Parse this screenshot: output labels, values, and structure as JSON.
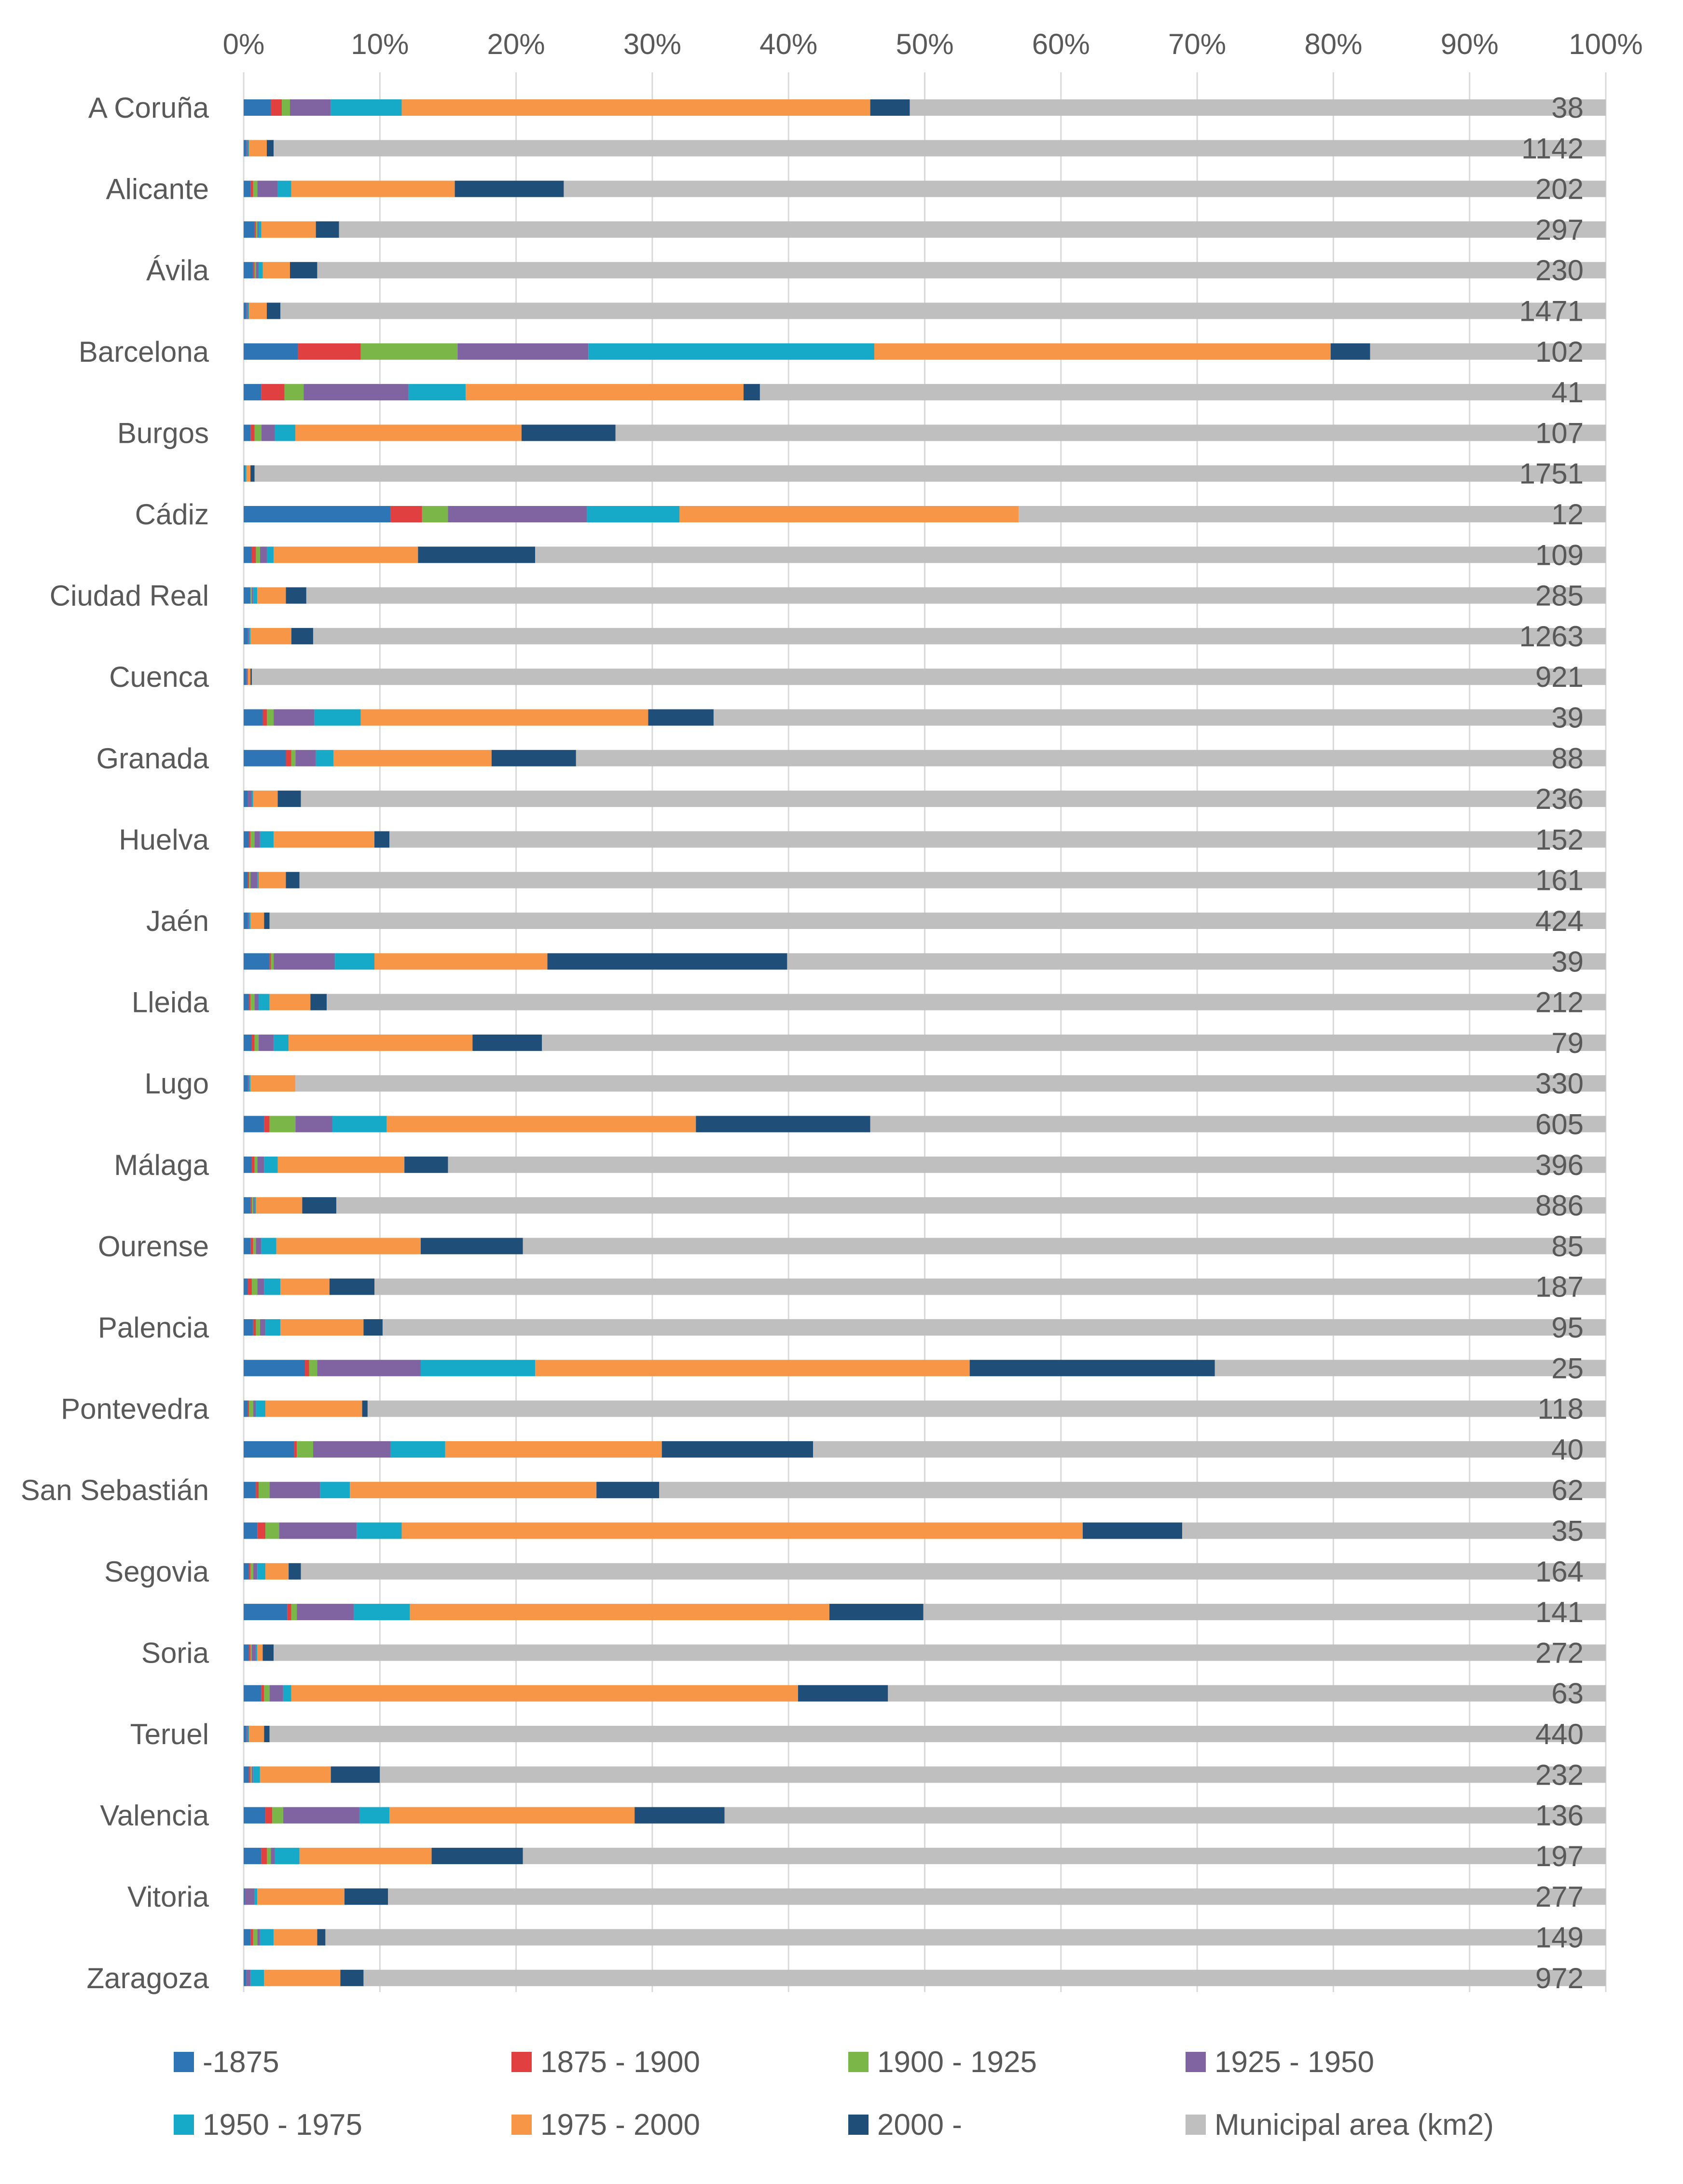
{
  "chart_data": {
    "type": "stacked-bar-100-horizontal",
    "x_ticks": [
      "0%",
      "10%",
      "20%",
      "30%",
      "40%",
      "50%",
      "60%",
      "70%",
      "80%",
      "90%",
      "100%"
    ],
    "xlim": [
      0,
      100
    ],
    "grid": true,
    "legend_position": "bottom",
    "series": [
      {
        "name": "-1875",
        "color": "#2E75B6"
      },
      {
        "name": "1875 - 1900",
        "color": "#E0403F"
      },
      {
        "name": "1900 - 1925",
        "color": "#7AB648"
      },
      {
        "name": "1925 - 1950",
        "color": "#8064A2"
      },
      {
        "name": "1950 - 1975",
        "color": "#17A9C8"
      },
      {
        "name": "1975 - 2000",
        "color": "#F79646"
      },
      {
        "name": "2000 -",
        "color": "#1F4E79"
      },
      {
        "name": "Municipal area (km2)",
        "color": "#BFBFBF"
      }
    ],
    "rows": [
      {
        "label": "A Coruña",
        "area": "38",
        "values": [
          2,
          0.8,
          0.6,
          3,
          5.2,
          34.4,
          2.9
        ]
      },
      {
        "label": "",
        "area": "1142",
        "values": [
          0.2,
          0,
          0,
          0.1,
          0.1,
          1.3,
          0.5
        ]
      },
      {
        "label": "Alicante",
        "area": "202",
        "values": [
          0.5,
          0.2,
          0.3,
          1.5,
          1,
          12,
          8
        ]
      },
      {
        "label": "",
        "area": "297",
        "values": [
          0.8,
          0.1,
          0.1,
          0.1,
          0.2,
          4,
          1.7
        ]
      },
      {
        "label": "Ávila",
        "area": "230",
        "values": [
          0.7,
          0.1,
          0.1,
          0.2,
          0.3,
          2,
          2
        ]
      },
      {
        "label": "",
        "area": "1471",
        "values": [
          0.2,
          0,
          0,
          0.1,
          0.1,
          1.3,
          1
        ]
      },
      {
        "label": "Barcelona",
        "area": "102",
        "values": [
          4,
          4.6,
          7.1,
          9.6,
          21,
          33.5,
          2.9
        ]
      },
      {
        "label": "",
        "area": "41",
        "values": [
          1.3,
          1.7,
          1.4,
          7.7,
          4.2,
          20.4,
          1.2
        ]
      },
      {
        "label": "Burgos",
        "area": "107",
        "values": [
          0.5,
          0.3,
          0.5,
          1,
          1.5,
          16.6,
          6.9
        ]
      },
      {
        "label": "",
        "area": "1751",
        "values": [
          0.1,
          0,
          0,
          0,
          0.1,
          0.3,
          0.3
        ]
      },
      {
        "label": "Cádiz",
        "area": "12",
        "values": [
          10.8,
          2.3,
          1.9,
          10.2,
          6.8,
          24.9,
          0
        ]
      },
      {
        "label": "",
        "area": "109",
        "values": [
          0.6,
          0.3,
          0.3,
          0.5,
          0.5,
          10.6,
          8.6
        ]
      },
      {
        "label": "Ciudad Real",
        "area": "285",
        "values": [
          0.5,
          0,
          0.1,
          0.1,
          0.3,
          2.1,
          1.5
        ]
      },
      {
        "label": "",
        "area": "1263",
        "values": [
          0.3,
          0,
          0,
          0.1,
          0.1,
          3,
          1.6
        ]
      },
      {
        "label": "Cuenca",
        "area": "921",
        "values": [
          0.2,
          0,
          0,
          0.1,
          0,
          0.2,
          0.1
        ]
      },
      {
        "label": "",
        "area": "39",
        "values": [
          1.4,
          0.3,
          0.5,
          3,
          3.4,
          21.1,
          4.8
        ]
      },
      {
        "label": "Granada",
        "area": "88",
        "values": [
          3.1,
          0.4,
          0.3,
          1.5,
          1.3,
          11.6,
          6.2
        ]
      },
      {
        "label": "",
        "area": "236",
        "values": [
          0.3,
          0,
          0,
          0.3,
          0.1,
          1.8,
          1.7
        ]
      },
      {
        "label": "Huelva",
        "area": "152",
        "values": [
          0.4,
          0.1,
          0.3,
          0.4,
          1,
          7.4,
          1.1
        ]
      },
      {
        "label": "",
        "area": "161",
        "values": [
          0.3,
          0.1,
          0.1,
          0.5,
          0.1,
          2,
          1
        ]
      },
      {
        "label": "Jaén",
        "area": "424",
        "values": [
          0.3,
          0,
          0,
          0.1,
          0.1,
          1,
          0.4
        ]
      },
      {
        "label": "",
        "area": "39",
        "values": [
          1.9,
          0.1,
          0.2,
          4.5,
          2.9,
          12.7,
          17.6
        ]
      },
      {
        "label": "Lleida",
        "area": "212",
        "values": [
          0.4,
          0.1,
          0.3,
          0.3,
          0.8,
          3,
          1.2
        ]
      },
      {
        "label": "",
        "area": "79",
        "values": [
          0.6,
          0.2,
          0.3,
          1.1,
          1.1,
          13.5,
          5.1
        ]
      },
      {
        "label": "Lugo",
        "area": "330",
        "values": [
          0.3,
          0,
          0,
          0.1,
          0.1,
          3.3,
          0
        ]
      },
      {
        "label": "",
        "area": "605",
        "values": [
          1.5,
          0.4,
          1.9,
          2.7,
          4,
          22.7,
          12.8
        ]
      },
      {
        "label": "Málaga",
        "area": "396",
        "values": [
          0.6,
          0.2,
          0.2,
          0.5,
          1,
          9.3,
          3.2
        ]
      },
      {
        "label": "",
        "area": "886",
        "values": [
          0.5,
          0.1,
          0.1,
          0.1,
          0.1,
          3.4,
          2.5
        ]
      },
      {
        "label": "Ourense",
        "area": "85",
        "values": [
          0.5,
          0.2,
          0.2,
          0.4,
          1.1,
          10.6,
          7.5
        ]
      },
      {
        "label": "",
        "area": "187",
        "values": [
          0.3,
          0.3,
          0.4,
          0.5,
          1.2,
          3.6,
          3.3
        ]
      },
      {
        "label": "Palencia",
        "area": "95",
        "values": [
          0.7,
          0.2,
          0.3,
          0.4,
          1.1,
          6.1,
          1.4
        ]
      },
      {
        "label": "",
        "area": "25",
        "values": [
          4.5,
          0.3,
          0.6,
          7.6,
          8.4,
          31.9,
          18
        ]
      },
      {
        "label": "Pontevedra",
        "area": "118",
        "values": [
          0.3,
          0.1,
          0.3,
          0.2,
          0.7,
          7.1,
          0.4
        ]
      },
      {
        "label": "",
        "area": "40",
        "values": [
          3.7,
          0.2,
          1.2,
          5.7,
          4,
          15.9,
          11.1
        ]
      },
      {
        "label": "San Sebastián",
        "area": "62",
        "values": [
          0.9,
          0.2,
          0.8,
          3.7,
          2.2,
          18.1,
          4.6
        ]
      },
      {
        "label": "",
        "area": "35",
        "values": [
          1,
          0.6,
          1,
          5.7,
          3.3,
          50,
          7.3
        ]
      },
      {
        "label": "Segovia",
        "area": "164",
        "values": [
          0.4,
          0.1,
          0.2,
          0.3,
          0.6,
          1.7,
          0.9
        ]
      },
      {
        "label": "",
        "area": "141",
        "values": [
          3.2,
          0.3,
          0.4,
          4.2,
          4.1,
          30.8,
          6.9
        ]
      },
      {
        "label": "Soria",
        "area": "272",
        "values": [
          0.4,
          0.1,
          0.1,
          0.3,
          0.1,
          0.4,
          0.8
        ]
      },
      {
        "label": "",
        "area": "63",
        "values": [
          1.3,
          0.2,
          0.4,
          1,
          0.6,
          37.2,
          6.6
        ]
      },
      {
        "label": "Teruel",
        "area": "440",
        "values": [
          0.2,
          0,
          0,
          0.1,
          0.1,
          1.1,
          0.4
        ]
      },
      {
        "label": "",
        "area": "232",
        "values": [
          0.4,
          0.1,
          0.1,
          0.1,
          0.5,
          5.2,
          3.6
        ]
      },
      {
        "label": "Valencia",
        "area": "136",
        "values": [
          1.6,
          0.5,
          0.8,
          5.6,
          2.2,
          18,
          6.6
        ]
      },
      {
        "label": "",
        "area": "197",
        "values": [
          1.3,
          0.4,
          0.3,
          0.3,
          1.8,
          9.7,
          6.7
        ]
      },
      {
        "label": "Vitoria",
        "area": "277",
        "values": [
          0.1,
          0,
          0,
          0.7,
          0.2,
          6.4,
          3.2
        ]
      },
      {
        "label": "",
        "area": "149",
        "values": [
          0.5,
          0.2,
          0.3,
          0.2,
          1,
          3.2,
          0.6
        ]
      },
      {
        "label": "Zaragoza",
        "area": "972",
        "values": [
          0.2,
          0,
          0,
          0.3,
          1,
          5.6,
          1.7
        ]
      }
    ]
  }
}
